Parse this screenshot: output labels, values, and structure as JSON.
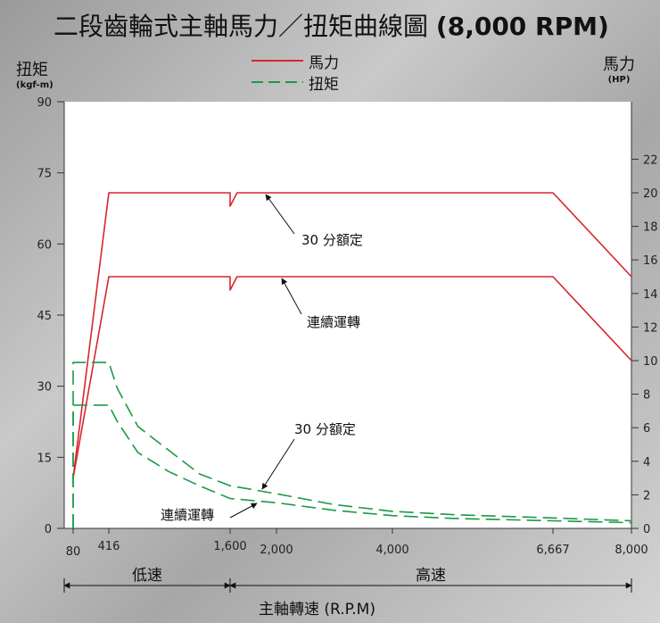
{
  "chart_data": {
    "type": "line",
    "title_main": "二段齒輪式主軸馬力／扭矩曲線圖",
    "title_rpm": "(8,000 RPM)",
    "y_left": {
      "label": "扭矩",
      "unit": "(kgf-m)",
      "lim": [
        0,
        90
      ],
      "ticks": [
        0,
        15,
        30,
        45,
        60,
        75,
        90
      ]
    },
    "y_right": {
      "label": "馬力",
      "unit": "(HP)",
      "lim": [
        0,
        22
      ],
      "ticks": [
        0,
        2,
        4,
        6,
        8,
        10,
        12,
        14,
        16,
        18,
        20,
        22
      ]
    },
    "x": {
      "label": "主軸轉速 (R.P.M)",
      "ticks": [
        {
          "v": 80,
          "t": "80"
        },
        {
          "v": 416,
          "t": "416"
        },
        {
          "v": 1600,
          "t": "1,600"
        },
        {
          "v": 2000,
          "t": "2,000"
        },
        {
          "v": 4000,
          "t": "4,000"
        },
        {
          "v": 6667,
          "t": "6,667"
        },
        {
          "v": 8000,
          "t": "8,000"
        }
      ]
    },
    "legend": [
      {
        "name": "馬力",
        "color": "#d7262e",
        "style": "solid"
      },
      {
        "name": "扭矩",
        "color": "#1a9a45",
        "style": "dashed"
      }
    ],
    "speed_ranges": [
      {
        "label": "低速",
        "from": 80,
        "to": 1600
      },
      {
        "label": "高速",
        "from": 1600,
        "to": 8000
      }
    ],
    "annotations": [
      {
        "text": "30 分額定",
        "target": "power-30min"
      },
      {
        "text": "連續運轉",
        "target": "power-cont"
      },
      {
        "text": "30 分額定",
        "target": "torque-30min"
      },
      {
        "text": "連續運轉",
        "target": "torque-cont"
      }
    ],
    "series": [
      {
        "id": "power-30min",
        "name": "馬力 30 分額定",
        "axis": "right",
        "color": "#d7262e",
        "dash": false,
        "points": [
          [
            80,
            3
          ],
          [
            416,
            20
          ],
          [
            1600,
            20
          ],
          [
            1600,
            19.2
          ],
          [
            1660,
            20
          ],
          [
            6667,
            20
          ],
          [
            8000,
            15
          ]
        ]
      },
      {
        "id": "power-cont",
        "name": "馬力 連續運轉",
        "axis": "right",
        "color": "#d7262e",
        "dash": false,
        "points": [
          [
            80,
            3
          ],
          [
            416,
            15
          ],
          [
            1600,
            15
          ],
          [
            1600,
            14.2
          ],
          [
            1660,
            15
          ],
          [
            6667,
            15
          ],
          [
            8000,
            10
          ]
        ]
      },
      {
        "id": "torque-30min",
        "name": "扭矩 30 分額定",
        "axis": "left",
        "color": "#1a9a45",
        "dash": true,
        "points": [
          [
            80,
            0
          ],
          [
            80,
            35
          ],
          [
            416,
            35
          ],
          [
            500,
            29.5
          ],
          [
            700,
            21.5
          ],
          [
            1000,
            16.5
          ],
          [
            1300,
            11.5
          ],
          [
            1600,
            9
          ],
          [
            2000,
            7.3
          ],
          [
            3000,
            5
          ],
          [
            4000,
            3.6
          ],
          [
            5000,
            2.9
          ],
          [
            6667,
            2.2
          ],
          [
            8000,
            1.6
          ]
        ]
      },
      {
        "id": "torque-cont",
        "name": "扭矩 連續運轉",
        "axis": "left",
        "color": "#1a9a45",
        "dash": true,
        "points": [
          [
            80,
            0
          ],
          [
            80,
            26
          ],
          [
            416,
            26
          ],
          [
            500,
            22.5
          ],
          [
            700,
            16
          ],
          [
            1000,
            12
          ],
          [
            1300,
            9
          ],
          [
            1600,
            6.3
          ],
          [
            2000,
            5.4
          ],
          [
            3000,
            3.8
          ],
          [
            4000,
            2.7
          ],
          [
            5000,
            2.1
          ],
          [
            6667,
            1.6
          ],
          [
            8000,
            1.2
          ]
        ]
      }
    ]
  }
}
